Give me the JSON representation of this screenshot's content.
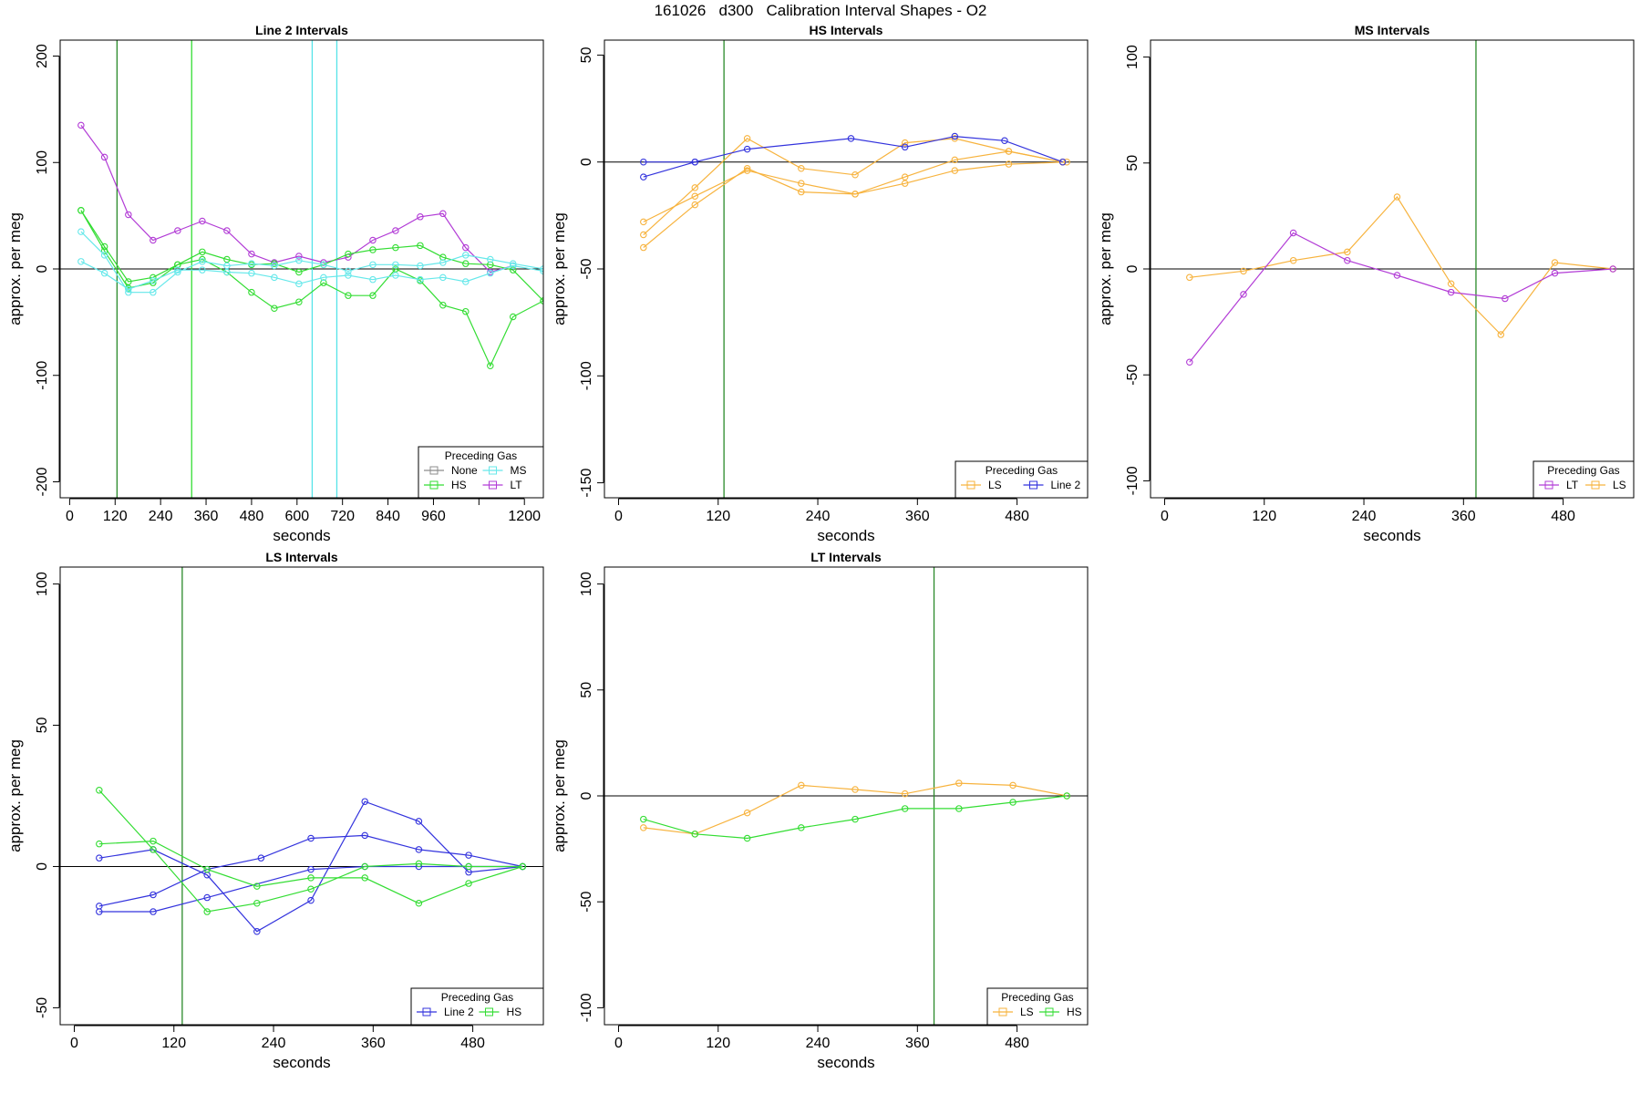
{
  "suptitle": "161026   d300   Calibration Interval Shapes - O2",
  "colors": {
    "None": "#8c8c8c",
    "HS": "#33dd33",
    "MS": "#66e8ea",
    "LT": "#b23cd6",
    "LS": "#f7b33e",
    "Line 2": "#3333dd",
    "grid": "#2a8a2a",
    "cyan": "#55e3e8"
  },
  "chart_data": [
    {
      "type": "line",
      "title": "Line 2 Intervals",
      "xlabel": "seconds",
      "ylabel": "approx. per meg",
      "xlim": [
        -25,
        1250
      ],
      "ylim": [
        -215,
        215
      ],
      "xticks": [
        0,
        120,
        240,
        360,
        480,
        600,
        720,
        840,
        960,
        1080,
        1200
      ],
      "xticklabels": [
        "0",
        "120",
        "240",
        "360",
        "480",
        "600",
        "720",
        "840",
        "960",
        "",
        "1200"
      ],
      "yticks": [
        -200,
        -100,
        0,
        100,
        200
      ],
      "vlines": [
        {
          "x": 125,
          "color": "grid"
        },
        {
          "x": 322,
          "color": "HS"
        },
        {
          "x": 640,
          "color": "cyan"
        },
        {
          "x": 705,
          "color": "cyan"
        }
      ],
      "legend": {
        "title": "Preceding Gas",
        "position": "bottom-right",
        "cols": 2,
        "entries": [
          "None",
          "MS",
          "HS",
          "LT"
        ]
      },
      "series": [
        {
          "name": "LT",
          "x": [
            30,
            92,
            155,
            220,
            285,
            350,
            415,
            480,
            540,
            605,
            670,
            735,
            800,
            860,
            925,
            985,
            1045,
            1110,
            1170
          ],
          "y": [
            135,
            105,
            51,
            27,
            36,
            45,
            36,
            14,
            6,
            12,
            6,
            11,
            27,
            36,
            49,
            52,
            20,
            -3,
            3
          ]
        },
        {
          "name": "HS",
          "x": [
            30,
            92,
            155,
            220,
            285,
            350,
            415,
            480,
            540,
            605,
            670,
            735,
            800,
            860,
            925,
            985,
            1045,
            1110,
            1170,
            1250
          ],
          "y": [
            55,
            21,
            -12,
            -8,
            4,
            16,
            9,
            4,
            5,
            -3,
            4,
            14,
            18,
            20,
            22,
            11,
            5,
            4,
            -1,
            -30
          ]
        },
        {
          "name": "HS",
          "x": [
            30,
            92,
            155,
            220,
            285,
            350,
            415,
            480,
            540,
            605,
            670,
            735,
            800,
            860,
            925,
            985,
            1045,
            1110,
            1170,
            1250
          ],
          "y": [
            55,
            17,
            -18,
            -13,
            4,
            9,
            -3,
            -22,
            -37,
            -31,
            -13,
            -25,
            -25,
            0,
            -11,
            -34,
            -40,
            -91,
            -45,
            -30
          ]
        },
        {
          "name": "MS",
          "x": [
            30,
            92,
            155,
            220,
            285,
            350,
            415,
            480,
            540,
            605,
            670,
            735,
            800,
            860,
            925,
            985,
            1045,
            1110,
            1170,
            1250
          ],
          "y": [
            35,
            13,
            -22,
            -22,
            -3,
            7,
            3,
            5,
            3,
            8,
            4,
            -2,
            4,
            4,
            3,
            6,
            13,
            9,
            5,
            0
          ]
        },
        {
          "name": "MS",
          "x": [
            30,
            92,
            155,
            220,
            285,
            350,
            415,
            480,
            540,
            605,
            670,
            735,
            800,
            860,
            925,
            985,
            1045,
            1110,
            1170,
            1250
          ],
          "y": [
            7,
            -4,
            -19,
            -11,
            -1,
            -1,
            -3,
            -4,
            -8,
            -14,
            -8,
            -6,
            -10,
            -6,
            -10,
            -8,
            -12,
            -4,
            3,
            -2
          ]
        }
      ]
    },
    {
      "type": "line",
      "title": "HS Intervals",
      "xlabel": "seconds",
      "ylabel": "approx. per meg",
      "xlim": [
        -17,
        565
      ],
      "ylim": [
        -157,
        57
      ],
      "xticks": [
        0,
        120,
        240,
        360,
        480
      ],
      "xticklabels": [
        "0",
        "120",
        "240",
        "360",
        "480"
      ],
      "yticks": [
        -150,
        -100,
        -50,
        0,
        50
      ],
      "vlines": [
        {
          "x": 127,
          "color": "grid"
        }
      ],
      "legend": {
        "title": "Preceding Gas",
        "position": "bottom-right",
        "cols": 2,
        "entries": [
          "LS",
          "Line 2"
        ]
      },
      "series": [
        {
          "name": "LS",
          "x": [
            30,
            92,
            155,
            220,
            285,
            345,
            405,
            470,
            535
          ],
          "y": [
            -34,
            -12,
            11,
            -3,
            -6,
            9,
            11,
            5,
            0
          ]
        },
        {
          "name": "LS",
          "x": [
            30,
            92,
            155,
            220,
            285,
            345,
            405,
            470,
            535
          ],
          "y": [
            -28,
            -16,
            -4,
            -10,
            -15,
            -7,
            1,
            5,
            0
          ]
        },
        {
          "name": "LS",
          "x": [
            30,
            92,
            155,
            220,
            285,
            345,
            405,
            470,
            540
          ],
          "y": [
            -40,
            -20,
            -3,
            -14,
            -15,
            -10,
            -4,
            -1,
            0
          ]
        },
        {
          "name": "Line 2",
          "x": [
            30,
            92,
            155,
            280,
            345,
            405,
            465,
            535
          ],
          "y": [
            -7,
            0,
            6,
            11,
            7,
            12,
            10,
            0
          ]
        },
        {
          "name": "Line 2",
          "x": [
            30,
            92
          ],
          "y": [
            0,
            0
          ]
        }
      ]
    },
    {
      "type": "line",
      "title": "MS Intervals",
      "xlabel": "seconds",
      "ylabel": "approx. per meg",
      "xlim": [
        -17,
        565
      ],
      "ylim": [
        -108,
        108
      ],
      "xticks": [
        0,
        120,
        240,
        360,
        480
      ],
      "xticklabels": [
        "0",
        "120",
        "240",
        "360",
        "480"
      ],
      "yticks": [
        -100,
        -50,
        0,
        50,
        100
      ],
      "vlines": [
        {
          "x": 375,
          "color": "grid"
        }
      ],
      "legend": {
        "title": "Preceding Gas",
        "position": "bottom-right",
        "cols": 2,
        "entries": [
          "LT",
          "LS"
        ]
      },
      "series": [
        {
          "name": "LS",
          "x": [
            30,
            95,
            155,
            220,
            280,
            345,
            405,
            470,
            540
          ],
          "y": [
            -4,
            -1,
            4,
            8,
            34,
            -7,
            -31,
            3,
            0
          ]
        },
        {
          "name": "LT",
          "x": [
            30,
            95,
            155,
            220,
            280,
            345,
            410,
            470,
            540
          ],
          "y": [
            -44,
            -12,
            17,
            4,
            -3,
            -11,
            -14,
            -2,
            0
          ]
        }
      ]
    },
    {
      "type": "line",
      "title": "LS Intervals",
      "xlabel": "seconds",
      "ylabel": "approx. per meg",
      "xlim": [
        -17,
        565
      ],
      "ylim": [
        -56,
        106
      ],
      "xticks": [
        0,
        120,
        240,
        360,
        480
      ],
      "xticklabels": [
        "0",
        "120",
        "240",
        "360",
        "480"
      ],
      "yticks": [
        -50,
        0,
        50,
        100
      ],
      "vlines": [
        {
          "x": 130,
          "color": "grid"
        }
      ],
      "legend": {
        "title": "Preceding Gas",
        "position": "bottom-right",
        "cols": 2,
        "entries": [
          "Line 2",
          "HS"
        ]
      },
      "series": [
        {
          "name": "Line 2",
          "x": [
            30,
            95,
            160,
            220,
            285,
            350,
            415,
            475,
            540
          ],
          "y": [
            3,
            6,
            -3,
            -23,
            -12,
            23,
            16,
            -2,
            0
          ]
        },
        {
          "name": "Line 2",
          "x": [
            30,
            95,
            160,
            285,
            350,
            415,
            475,
            540
          ],
          "y": [
            -16,
            -16,
            -11,
            -1,
            0,
            0,
            0,
            0
          ]
        },
        {
          "name": "Line 2",
          "x": [
            30,
            95,
            160,
            225,
            285,
            350,
            415,
            475,
            540
          ],
          "y": [
            -14,
            -10,
            -1,
            3,
            10,
            11,
            6,
            4,
            0
          ]
        },
        {
          "name": "HS",
          "x": [
            30,
            95,
            160,
            220,
            285,
            350,
            415,
            475,
            540
          ],
          "y": [
            27,
            6,
            -16,
            -13,
            -8,
            0,
            1,
            0,
            0
          ]
        },
        {
          "name": "HS",
          "x": [
            30,
            95,
            160,
            220,
            285,
            350,
            415,
            475,
            540
          ],
          "y": [
            8,
            9,
            -1,
            -7,
            -4,
            -4,
            -13,
            -6,
            0
          ]
        }
      ]
    },
    {
      "type": "line",
      "title": "LT Intervals",
      "xlabel": "seconds",
      "ylabel": "approx. per meg",
      "xlim": [
        -17,
        565
      ],
      "ylim": [
        -108,
        108
      ],
      "xticks": [
        0,
        120,
        240,
        360,
        480
      ],
      "xticklabels": [
        "0",
        "120",
        "240",
        "360",
        "480"
      ],
      "yticks": [
        -100,
        -50,
        0,
        50,
        100
      ],
      "vlines": [
        {
          "x": 380,
          "color": "grid"
        }
      ],
      "legend": {
        "title": "Preceding Gas",
        "position": "bottom-right",
        "cols": 2,
        "entries": [
          "LS",
          "HS"
        ]
      },
      "series": [
        {
          "name": "LS",
          "x": [
            30,
            92,
            155,
            220,
            285,
            345,
            410,
            475,
            540
          ],
          "y": [
            -15,
            -18,
            -8,
            5,
            3,
            1,
            6,
            5,
            0
          ]
        },
        {
          "name": "HS",
          "x": [
            30,
            92,
            155,
            220,
            285,
            345,
            410,
            475,
            540
          ],
          "y": [
            -11,
            -18,
            -20,
            -15,
            -11,
            -6,
            -6,
            -3,
            0
          ]
        }
      ]
    }
  ]
}
